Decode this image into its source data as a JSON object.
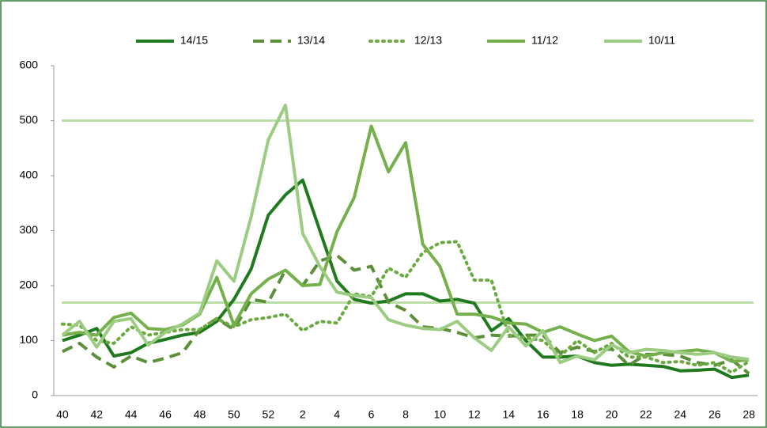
{
  "chart_data": {
    "type": "line",
    "categories": [
      40,
      null,
      42,
      null,
      44,
      null,
      46,
      null,
      48,
      null,
      50,
      null,
      52,
      null,
      2,
      null,
      4,
      null,
      6,
      null,
      8,
      null,
      10,
      null,
      12,
      null,
      14,
      null,
      16,
      null,
      18,
      null,
      20,
      null,
      22,
      null,
      24,
      null,
      26,
      null,
      28
    ],
    "series": [
      {
        "name": "14/15",
        "color": "#1f7a1f",
        "dash": "solid",
        "values": [
          100,
          110,
          122,
          72,
          78,
          95,
          102,
          110,
          115,
          135,
          175,
          230,
          328,
          365,
          392,
          300,
          208,
          175,
          168,
          172,
          185,
          185,
          172,
          175,
          168,
          118,
          140,
          100,
          70,
          70,
          72,
          60,
          55,
          57,
          55,
          53,
          45,
          46,
          48,
          33,
          37
        ]
      },
      {
        "name": "13/14",
        "color": "#5b8f3a",
        "dash": "dashed",
        "values": [
          80,
          95,
          70,
          52,
          72,
          60,
          68,
          78,
          120,
          140,
          120,
          175,
          170,
          228,
          200,
          245,
          255,
          228,
          235,
          170,
          155,
          125,
          122,
          115,
          105,
          110,
          108,
          110,
          110,
          78,
          88,
          80,
          85,
          55,
          75,
          75,
          72,
          60,
          55,
          65,
          40
        ]
      },
      {
        "name": "12/13",
        "color": "#6aaa3f",
        "dash": "dotted",
        "values": [
          130,
          128,
          100,
          95,
          125,
          110,
          115,
          120,
          120,
          140,
          125,
          138,
          142,
          148,
          118,
          135,
          132,
          185,
          180,
          232,
          215,
          260,
          278,
          280,
          210,
          210,
          110,
          105,
          100,
          72,
          100,
          78,
          95,
          70,
          70,
          60,
          62,
          55,
          60,
          42,
          62
        ]
      },
      {
        "name": "11/12",
        "color": "#75b04c",
        "dash": "solid",
        "values": [
          110,
          115,
          110,
          142,
          150,
          122,
          120,
          128,
          148,
          215,
          128,
          185,
          212,
          228,
          200,
          202,
          298,
          360,
          490,
          407,
          460,
          275,
          235,
          148,
          148,
          143,
          132,
          130,
          115,
          125,
          112,
          100,
          108,
          80,
          72,
          78,
          80,
          83,
          78,
          62,
          65
        ]
      },
      {
        "name": "10/11",
        "color": "#9ccc82",
        "dash": "solid",
        "values": [
          110,
          135,
          88,
          135,
          140,
          92,
          115,
          130,
          150,
          245,
          208,
          325,
          465,
          528,
          295,
          235,
          188,
          182,
          178,
          138,
          128,
          122,
          120,
          135,
          105,
          82,
          125,
          90,
          118,
          60,
          72,
          65,
          92,
          78,
          84,
          82,
          78,
          75,
          78,
          70,
          66
        ]
      }
    ],
    "reference_lines": [
      500,
      169
    ],
    "reference_color": "#bcdca8",
    "ylim": [
      0,
      600
    ],
    "yticks": [
      0,
      100,
      200,
      300,
      400,
      500,
      600
    ],
    "grid": false,
    "legend": "top"
  }
}
